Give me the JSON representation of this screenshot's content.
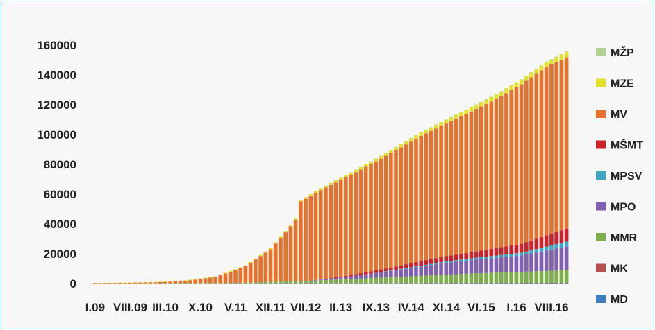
{
  "chart_data": {
    "type": "bar",
    "stacked": true,
    "title": "",
    "xlabel": "",
    "ylabel": "",
    "ylim": [
      0,
      160000
    ],
    "yticks": [
      0,
      20000,
      40000,
      60000,
      80000,
      100000,
      120000,
      140000,
      160000
    ],
    "grid": false,
    "legend_position": "right",
    "x_tick_labels": [
      "I.09",
      "VIII.09",
      "III.10",
      "X.10",
      "V.11",
      "XII.11",
      "VII.12",
      "II.13",
      "IX.13",
      "IV.14",
      "XI.14",
      "VI.15",
      "I.16",
      "VIII.16"
    ],
    "period": {
      "first_label": "I.09",
      "months": 95
    },
    "series_order_bottom_to_top": [
      "MD",
      "MK",
      "MMR",
      "MPO",
      "MPSV",
      "MŠMT",
      "MV",
      "MZE",
      "MŽP"
    ],
    "legend_order": [
      "MŽP",
      "MZE",
      "MV",
      "MŠMT",
      "MPSV",
      "MPO",
      "MMR",
      "MK",
      "MD"
    ],
    "series": [
      {
        "name": "MD",
        "color": "#3d7fc0",
        "anchors": [
          [
            0,
            0
          ],
          [
            95,
            300
          ]
        ]
      },
      {
        "name": "MK",
        "color": "#b5514b",
        "anchors": [
          [
            0,
            0
          ],
          [
            95,
            200
          ]
        ]
      },
      {
        "name": "MMR",
        "color": "#7fae4c",
        "anchors": [
          [
            0,
            0
          ],
          [
            28,
            300
          ],
          [
            36,
            1000
          ],
          [
            42,
            1500
          ],
          [
            56,
            3500
          ],
          [
            76,
            6500
          ],
          [
            95,
            8500
          ]
        ]
      },
      {
        "name": "MPO",
        "color": "#8060b0",
        "anchors": [
          [
            0,
            0
          ],
          [
            42,
            0
          ],
          [
            50,
            1500
          ],
          [
            60,
            4500
          ],
          [
            70,
            8000
          ],
          [
            85,
            11000
          ],
          [
            95,
            16500
          ]
        ]
      },
      {
        "name": "MPSV",
        "color": "#3fa6c5",
        "anchors": [
          [
            0,
            0
          ],
          [
            55,
            0
          ],
          [
            62,
            500
          ],
          [
            75,
            1200
          ],
          [
            85,
            1800
          ],
          [
            95,
            3500
          ]
        ]
      },
      {
        "name": "MŠMT",
        "color": "#d0202a",
        "anchors": [
          [
            0,
            0
          ],
          [
            45,
            0
          ],
          [
            55,
            1500
          ],
          [
            65,
            3000
          ],
          [
            75,
            4000
          ],
          [
            85,
            6000
          ],
          [
            95,
            9000
          ]
        ]
      },
      {
        "name": "MV",
        "color": "#e8722c",
        "anchors": [
          [
            0,
            300
          ],
          [
            6,
            400
          ],
          [
            12,
            600
          ],
          [
            18,
            1500
          ],
          [
            24,
            4000
          ],
          [
            30,
            11000
          ],
          [
            35,
            22000
          ],
          [
            38,
            33000
          ],
          [
            40,
            41000
          ],
          [
            41,
            53500
          ],
          [
            45,
            60000
          ],
          [
            50,
            66000
          ],
          [
            55,
            72000
          ],
          [
            60,
            78000
          ],
          [
            65,
            84000
          ],
          [
            70,
            89000
          ],
          [
            75,
            94500
          ],
          [
            80,
            100000
          ],
          [
            85,
            107000
          ],
          [
            90,
            113000
          ],
          [
            95,
            115500
          ]
        ]
      },
      {
        "name": "MZE",
        "color": "#e3e12c",
        "anchors": [
          [
            0,
            100
          ],
          [
            30,
            500
          ],
          [
            41,
            1000
          ],
          [
            60,
            2000
          ],
          [
            80,
            3000
          ],
          [
            95,
            3500
          ]
        ]
      },
      {
        "name": "MŽP",
        "color": "#b2d38f",
        "anchors": [
          [
            0,
            0
          ],
          [
            95,
            300
          ]
        ]
      }
    ]
  }
}
